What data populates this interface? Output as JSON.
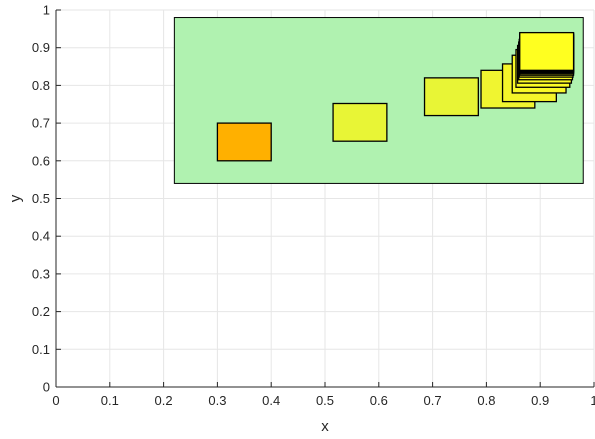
{
  "chart_data": {
    "type": "scatter",
    "title": "",
    "xlabel": "x",
    "ylabel": "y",
    "xlim": [
      0,
      1
    ],
    "ylim": [
      0,
      1
    ],
    "grid": true,
    "xticks": [
      "0",
      "0.1",
      "0.2",
      "0.3",
      "0.4",
      "0.5",
      "0.6",
      "0.7",
      "0.8",
      "0.9",
      "1"
    ],
    "yticks": [
      "0",
      "0.1",
      "0.2",
      "0.3",
      "0.4",
      "0.5",
      "0.6",
      "0.7",
      "0.8",
      "0.9",
      "1"
    ],
    "colors": {
      "region_fill": "#b0f2b0",
      "grid": "#e6e6e6",
      "axis": "#262626",
      "rect_stroke": "#000000"
    },
    "region": {
      "x0": 0.22,
      "x1": 0.98,
      "y0": 0.54,
      "y1": 0.98
    },
    "rectangles": [
      {
        "x0": 0.3,
        "x1": 0.4,
        "y0": 0.6,
        "y1": 0.7,
        "color": "#ffb000"
      },
      {
        "x0": 0.515,
        "x1": 0.615,
        "y0": 0.652,
        "y1": 0.752,
        "color": "#e8f536"
      },
      {
        "x0": 0.685,
        "x1": 0.785,
        "y0": 0.72,
        "y1": 0.82,
        "color": "#e8f536"
      },
      {
        "x0": 0.79,
        "x1": 0.89,
        "y0": 0.74,
        "y1": 0.84,
        "color": "#f0f530"
      },
      {
        "x0": 0.83,
        "x1": 0.93,
        "y0": 0.757,
        "y1": 0.857,
        "color": "#f5f52a"
      },
      {
        "x0": 0.848,
        "x1": 0.948,
        "y0": 0.78,
        "y1": 0.88,
        "color": "#f8f828"
      },
      {
        "x0": 0.855,
        "x1": 0.955,
        "y0": 0.795,
        "y1": 0.895,
        "color": "#fafa26"
      },
      {
        "x0": 0.858,
        "x1": 0.958,
        "y0": 0.806,
        "y1": 0.906,
        "color": "#fbfb25"
      },
      {
        "x0": 0.86,
        "x1": 0.96,
        "y0": 0.815,
        "y1": 0.915,
        "color": "#fcfc24"
      },
      {
        "x0": 0.861,
        "x1": 0.961,
        "y0": 0.822,
        "y1": 0.922,
        "color": "#fdfd23"
      },
      {
        "x0": 0.862,
        "x1": 0.962,
        "y0": 0.827,
        "y1": 0.927,
        "color": "#fdfd22"
      },
      {
        "x0": 0.862,
        "x1": 0.962,
        "y0": 0.831,
        "y1": 0.931,
        "color": "#fefe22"
      },
      {
        "x0": 0.862,
        "x1": 0.962,
        "y0": 0.834,
        "y1": 0.934,
        "color": "#fefe21"
      },
      {
        "x0": 0.862,
        "x1": 0.962,
        "y0": 0.836,
        "y1": 0.936,
        "color": "#ffff21"
      },
      {
        "x0": 0.862,
        "x1": 0.962,
        "y0": 0.838,
        "y1": 0.938,
        "color": "#ffff20"
      },
      {
        "x0": 0.862,
        "x1": 0.962,
        "y0": 0.84,
        "y1": 0.94,
        "color": "#ffff20"
      }
    ]
  }
}
